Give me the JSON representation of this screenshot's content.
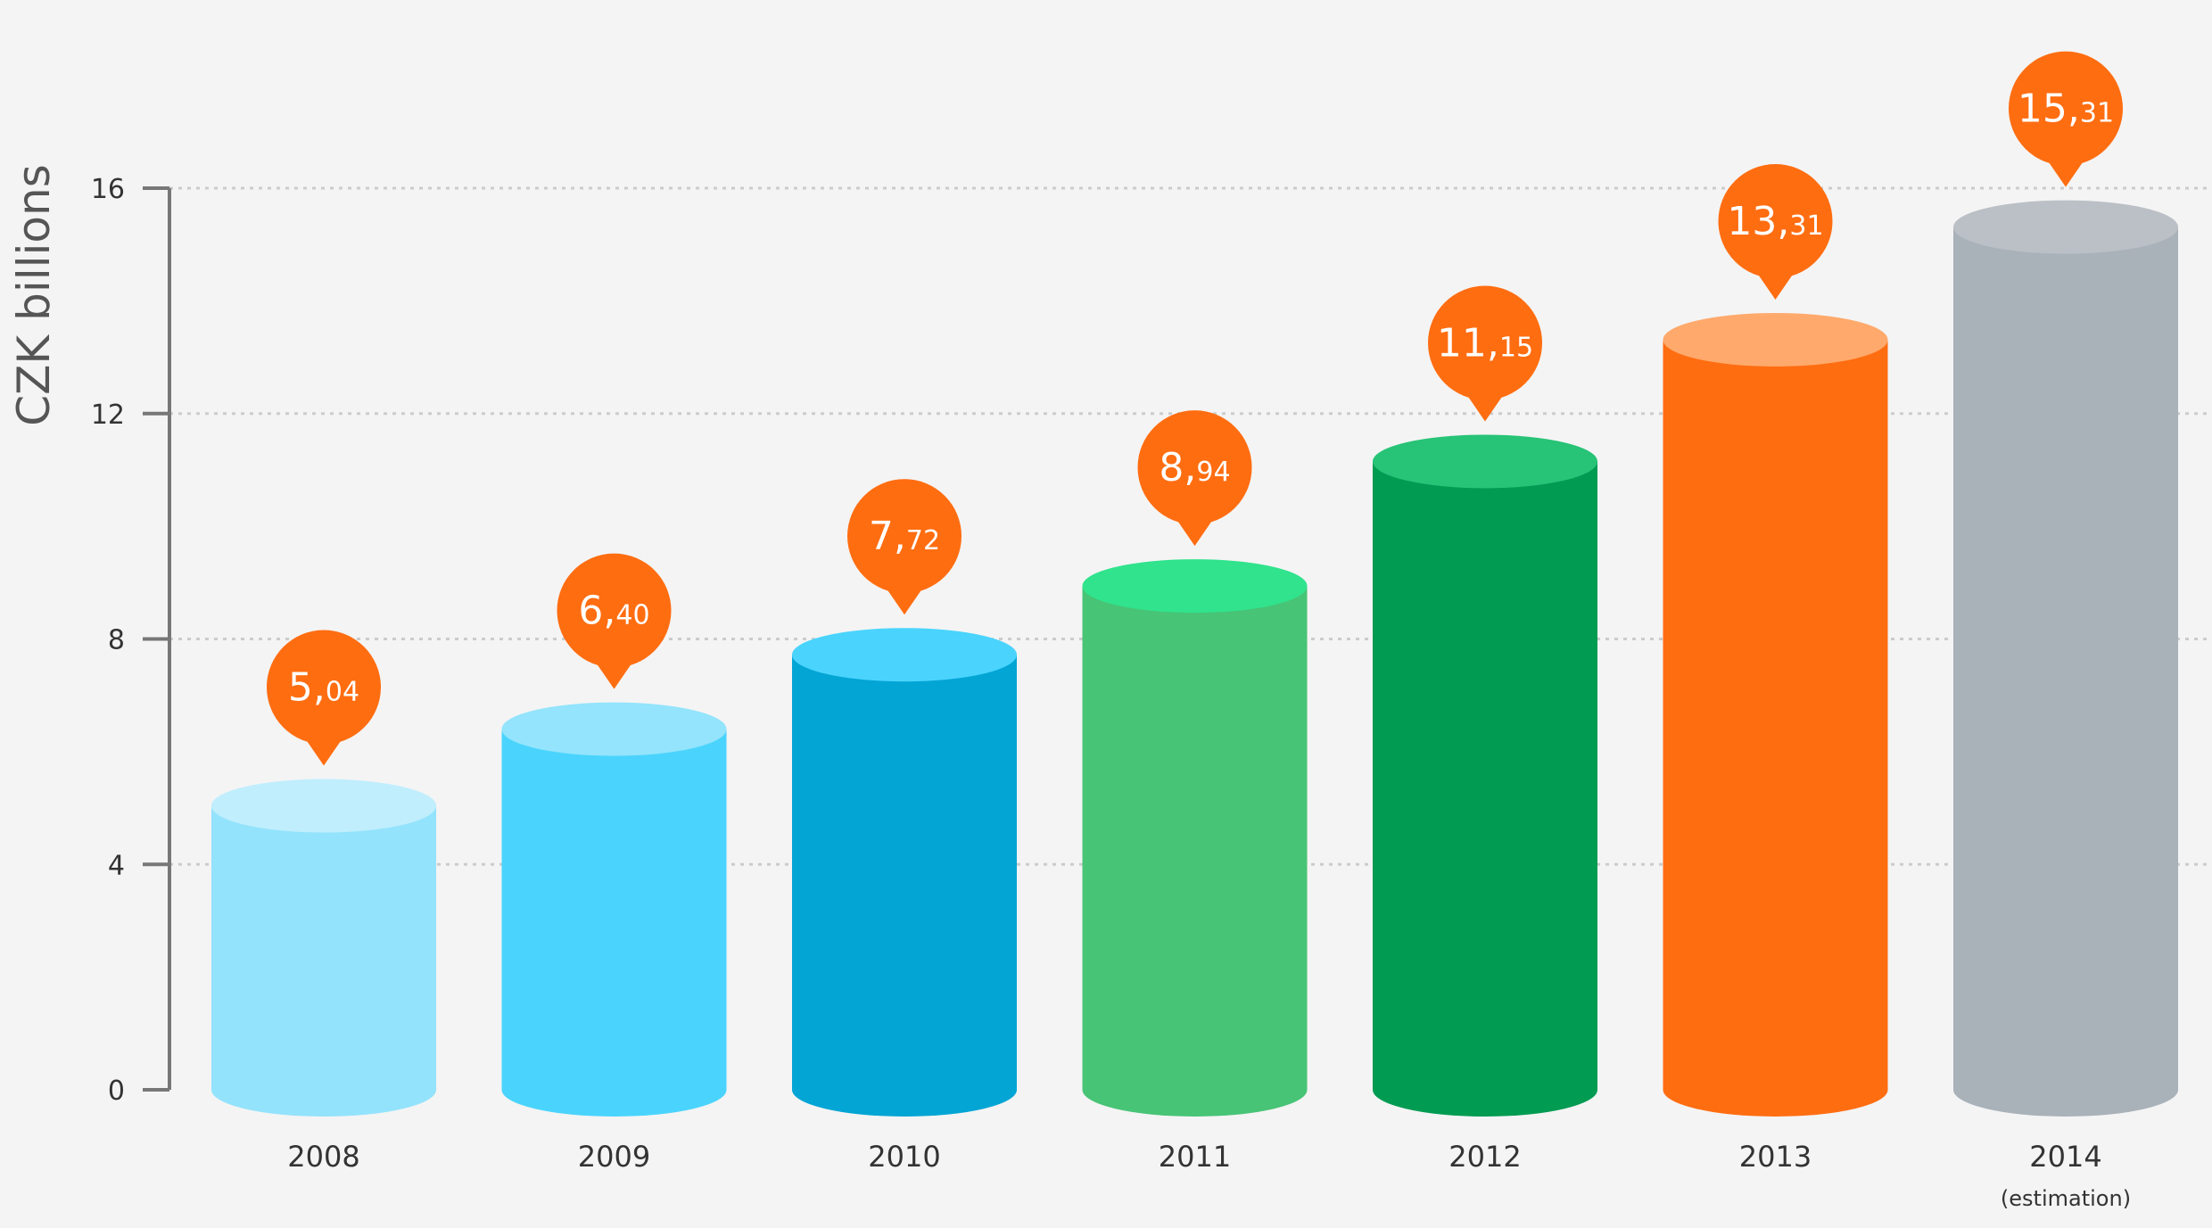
{
  "chart_data": {
    "type": "bar",
    "title": "",
    "xlabel": "",
    "ylabel": "CZK billions",
    "ylim": [
      0,
      16
    ],
    "yticks": [
      0,
      4,
      8,
      12,
      16
    ],
    "ytick_labels": [
      "0",
      "4",
      "8",
      "12",
      "16"
    ],
    "grid": true,
    "legend": "none",
    "categories": [
      "2008",
      "2009",
      "2010",
      "2011",
      "2012",
      "2013",
      "2014"
    ],
    "category_notes": [
      "",
      "",
      "",
      "",
      "",
      "",
      "(estimation)"
    ],
    "values": [
      5.04,
      6.4,
      7.72,
      8.94,
      11.15,
      13.31,
      15.31
    ],
    "data_labels": [
      {
        "main": "5,",
        "dec": "04"
      },
      {
        "main": "6,",
        "dec": "40"
      },
      {
        "main": "7,",
        "dec": "72"
      },
      {
        "main": "8,",
        "dec": "94"
      },
      {
        "main": "11,",
        "dec": "15"
      },
      {
        "main": "13,",
        "dec": "31"
      },
      {
        "main": "15,",
        "dec": "31"
      }
    ],
    "colors": {
      "bodies": [
        "#94e3fc",
        "#4ad4fd",
        "#03a5d5",
        "#47c476",
        "#019b52",
        "#ff6d11",
        "#a9b1b9"
      ],
      "tops": [
        "#c0eefd",
        "#93e4fc",
        "#4ad4fd",
        "#30e38c",
        "#27c376",
        "#ffa96c",
        "#bbc0c6"
      ],
      "bubble": "#ff6d11",
      "axis": "#777777",
      "grid": "#cccccc"
    }
  }
}
